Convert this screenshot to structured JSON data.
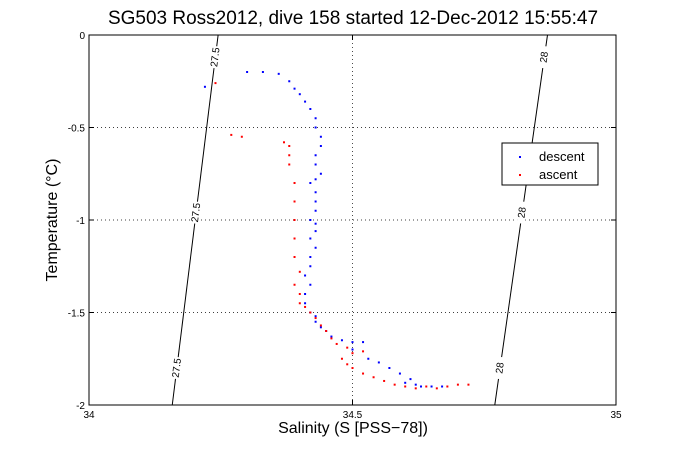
{
  "chart_data": {
    "type": "scatter",
    "title": "SG503 Ross2012, dive 158 started 12-Dec-2012 15:55:47",
    "xlabel": "Salinity (S [PSS−78])",
    "ylabel": "Temperature (°C)",
    "xlim": [
      34,
      35
    ],
    "ylim": [
      -2,
      0
    ],
    "x_ticks": [
      34,
      34.5,
      35
    ],
    "x_tick_labels": [
      "34",
      "34.5",
      "35"
    ],
    "y_ticks": [
      0,
      -0.5,
      -1,
      -1.5,
      -2
    ],
    "y_tick_labels": [
      "0",
      "-0.5",
      "-1",
      "-1.5",
      "-2"
    ],
    "grid": true,
    "legend_position": "right",
    "series": [
      {
        "name": "descent",
        "color": "#0000ff",
        "marker": "dot",
        "points": [
          [
            34.3,
            -0.2
          ],
          [
            34.33,
            -0.2
          ],
          [
            34.36,
            -0.21
          ],
          [
            34.38,
            -0.25
          ],
          [
            34.39,
            -0.29
          ],
          [
            34.4,
            -0.32
          ],
          [
            34.41,
            -0.36
          ],
          [
            34.42,
            -0.4
          ],
          [
            34.43,
            -0.45
          ],
          [
            34.43,
            -0.5
          ],
          [
            34.44,
            -0.55
          ],
          [
            34.44,
            -0.6
          ],
          [
            34.43,
            -0.65
          ],
          [
            34.43,
            -0.7
          ],
          [
            34.44,
            -0.75
          ],
          [
            34.43,
            -0.78
          ],
          [
            34.42,
            -0.8
          ],
          [
            34.43,
            -0.85
          ],
          [
            34.43,
            -0.9
          ],
          [
            34.43,
            -0.95
          ],
          [
            34.42,
            -1.0
          ],
          [
            34.43,
            -1.02
          ],
          [
            34.43,
            -1.06
          ],
          [
            34.42,
            -1.1
          ],
          [
            34.43,
            -1.15
          ],
          [
            34.42,
            -1.2
          ],
          [
            34.42,
            -1.25
          ],
          [
            34.41,
            -1.3
          ],
          [
            34.42,
            -1.35
          ],
          [
            34.41,
            -1.4
          ],
          [
            34.41,
            -1.45
          ],
          [
            34.42,
            -1.5
          ],
          [
            34.43,
            -1.52
          ],
          [
            34.43,
            -1.55
          ],
          [
            34.44,
            -1.58
          ],
          [
            34.45,
            -1.6
          ],
          [
            34.46,
            -1.63
          ],
          [
            34.48,
            -1.65
          ],
          [
            34.5,
            -1.66
          ],
          [
            34.52,
            -1.66
          ],
          [
            34.5,
            -1.7
          ],
          [
            34.53,
            -1.75
          ],
          [
            34.55,
            -1.77
          ],
          [
            34.57,
            -1.8
          ],
          [
            34.59,
            -1.83
          ],
          [
            34.61,
            -1.86
          ],
          [
            34.6,
            -1.88
          ],
          [
            34.62,
            -1.89
          ],
          [
            34.63,
            -1.9
          ],
          [
            34.65,
            -1.9
          ],
          [
            34.67,
            -1.9
          ],
          [
            34.22,
            -0.28
          ]
        ]
      },
      {
        "name": "ascent",
        "color": "#ff0000",
        "marker": "dot",
        "points": [
          [
            34.72,
            -1.89
          ],
          [
            34.7,
            -1.89
          ],
          [
            34.68,
            -1.9
          ],
          [
            34.66,
            -1.91
          ],
          [
            34.64,
            -1.9
          ],
          [
            34.62,
            -1.91
          ],
          [
            34.6,
            -1.9
          ],
          [
            34.58,
            -1.89
          ],
          [
            34.56,
            -1.87
          ],
          [
            34.54,
            -1.85
          ],
          [
            34.52,
            -1.83
          ],
          [
            34.5,
            -1.8
          ],
          [
            34.49,
            -1.78
          ],
          [
            34.48,
            -1.75
          ],
          [
            34.5,
            -1.72
          ],
          [
            34.52,
            -1.71
          ],
          [
            34.49,
            -1.69
          ],
          [
            34.47,
            -1.67
          ],
          [
            34.46,
            -1.64
          ],
          [
            34.45,
            -1.6
          ],
          [
            34.44,
            -1.57
          ],
          [
            34.43,
            -1.53
          ],
          [
            34.42,
            -1.5
          ],
          [
            34.41,
            -1.47
          ],
          [
            34.4,
            -1.45
          ],
          [
            34.4,
            -1.4
          ],
          [
            34.39,
            -1.35
          ],
          [
            34.4,
            -1.28
          ],
          [
            34.39,
            -1.2
          ],
          [
            34.39,
            -1.1
          ],
          [
            34.39,
            -1.0
          ],
          [
            34.39,
            -0.9
          ],
          [
            34.39,
            -0.8
          ],
          [
            34.38,
            -0.7
          ],
          [
            34.38,
            -0.65
          ],
          [
            34.38,
            -0.6
          ],
          [
            34.37,
            -0.58
          ],
          [
            34.27,
            -0.54
          ],
          [
            34.29,
            -0.55
          ],
          [
            34.24,
            -0.26
          ]
        ]
      }
    ],
    "isopycnals": [
      {
        "label": "27.5",
        "s0": 34.158,
        "s1": 34.245
      },
      {
        "label": "28",
        "s0": 34.77,
        "s1": 34.87
      }
    ]
  }
}
